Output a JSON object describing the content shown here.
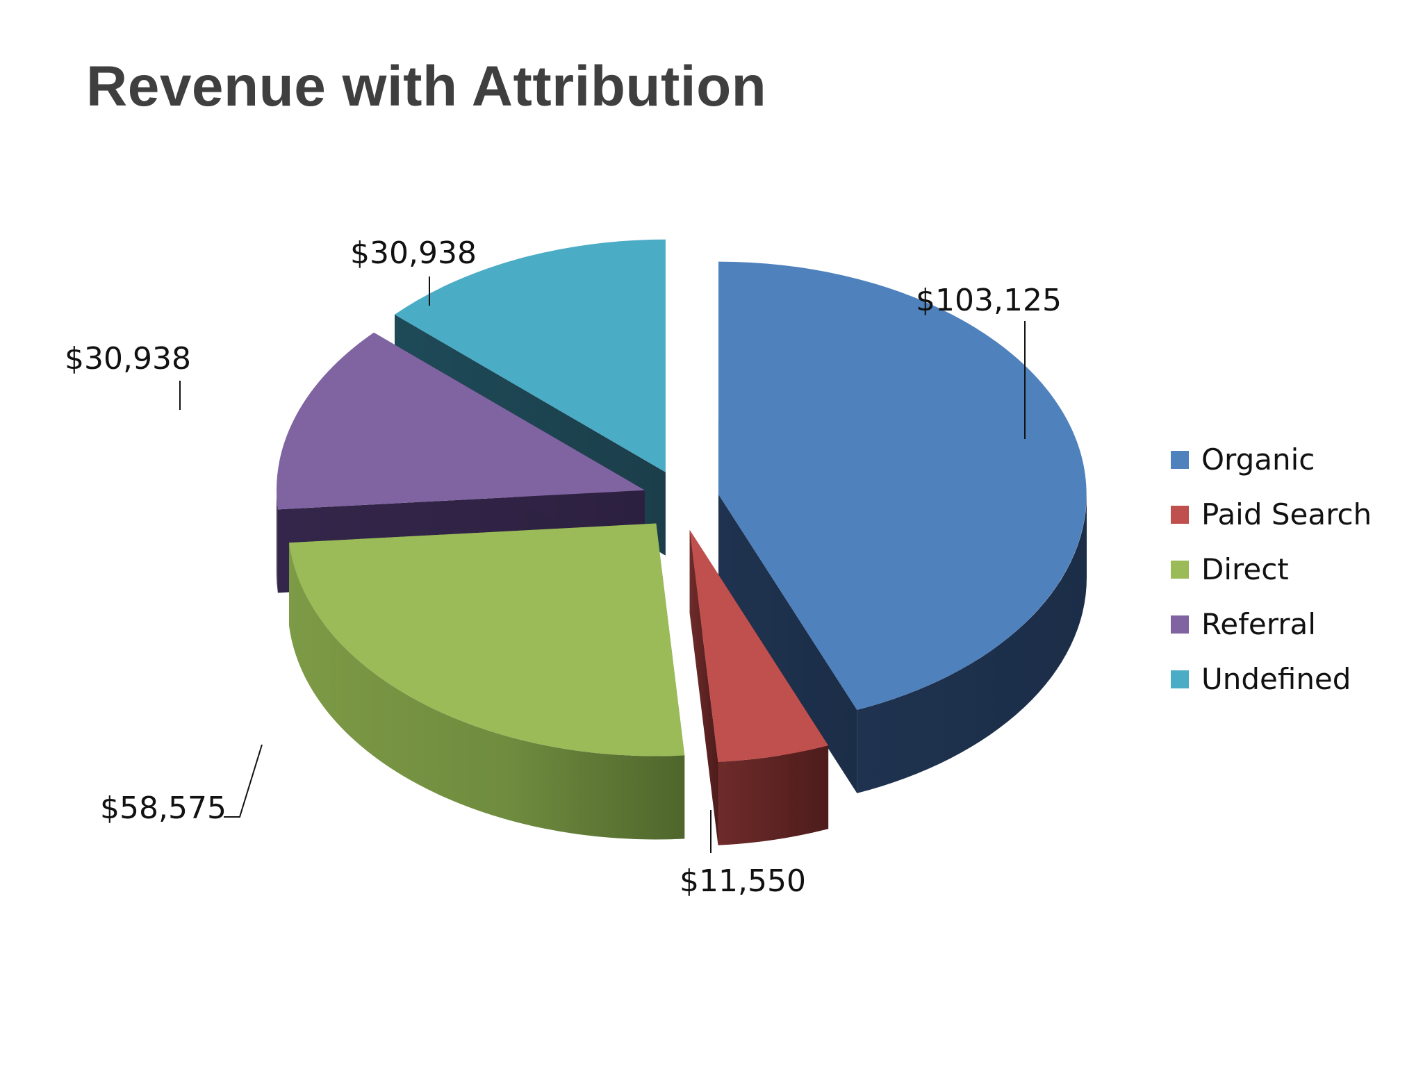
{
  "chart_data": {
    "type": "pie",
    "title": "Revenue with Attribution",
    "categories": [
      "Organic",
      "Paid Search",
      "Direct",
      "Referral",
      "Undefined"
    ],
    "values": [
      103125,
      11550,
      58575,
      30938,
      30938
    ],
    "data_labels": [
      "$103,125",
      "$11,550",
      "$58,575",
      "$30,938",
      "$30,938"
    ],
    "colors": [
      "#4f81bd",
      "#c0504d",
      "#9bbb59",
      "#8064a2",
      "#4bacc6"
    ],
    "legend_position": "right",
    "style": "3d-exploded"
  }
}
